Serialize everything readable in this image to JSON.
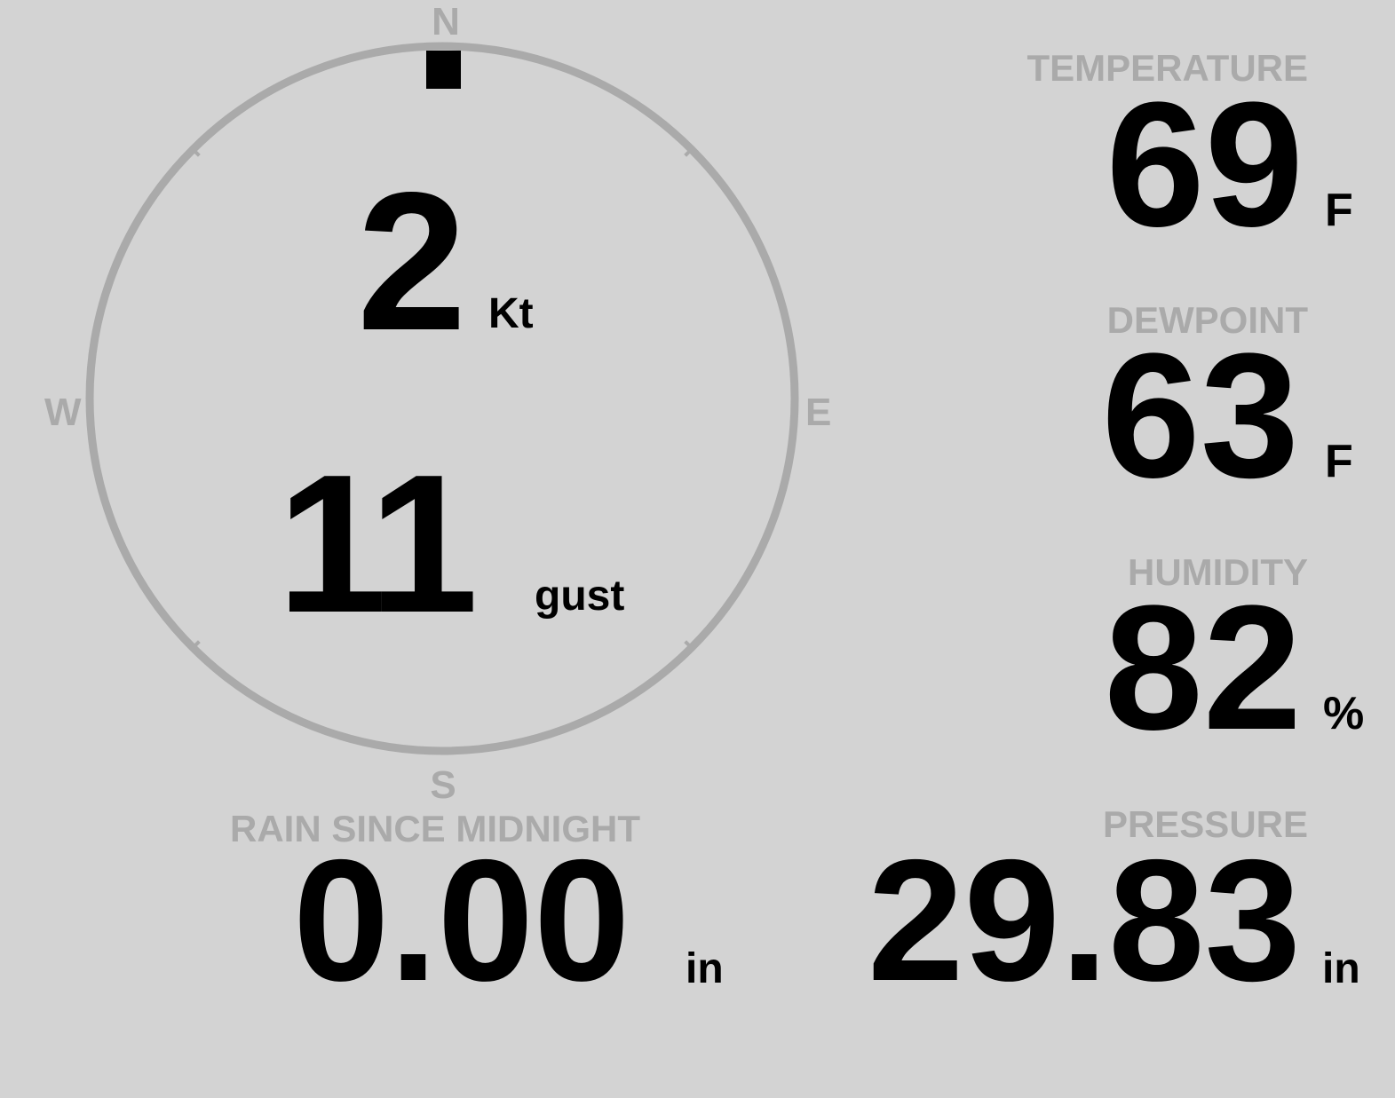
{
  "wind": {
    "speed": "2",
    "speed_unit": "Kt",
    "gust": "11",
    "gust_label": "gust",
    "direction_deg": 0,
    "compass": {
      "n": "N",
      "e": "E",
      "s": "S",
      "w": "W"
    }
  },
  "temperature": {
    "label": "TEMPERATURE",
    "value": "69",
    "unit": "F"
  },
  "dewpoint": {
    "label": "DEWPOINT",
    "value": "63",
    "unit": "F"
  },
  "humidity": {
    "label": "HUMIDITY",
    "value": "82",
    "unit": "%"
  },
  "pressure": {
    "label": "PRESSURE",
    "value": "29.83",
    "unit": "in"
  },
  "rain": {
    "label": "RAIN SINCE MIDNIGHT",
    "value": "0.00",
    "unit": "in"
  },
  "colors": {
    "background": "#d3d3d3",
    "label": "#aaaaaa",
    "value": "#000000"
  }
}
